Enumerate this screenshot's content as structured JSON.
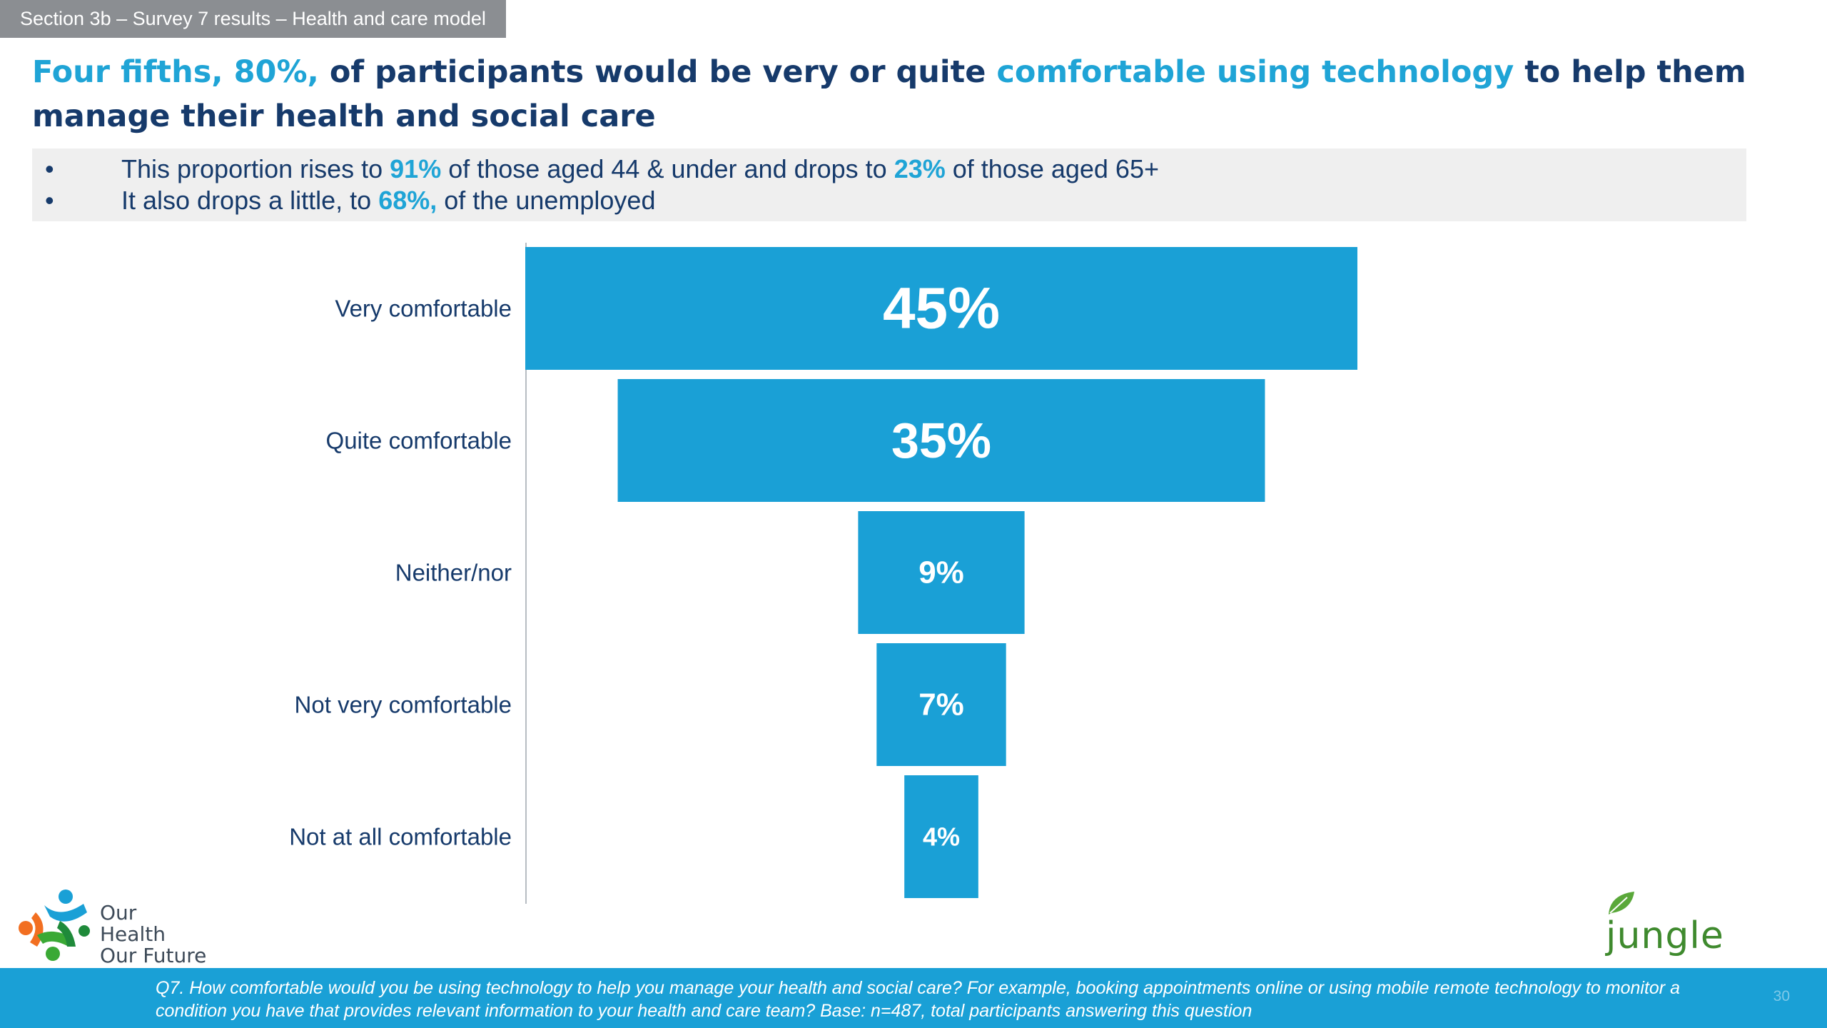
{
  "section_tab": "Section 3b – Survey 7 results – Health and care model",
  "headline": {
    "part1": "Four fifths, 80%,",
    "part2": " of participants would be very or quite ",
    "part3": "comfortable using technology",
    "part4": " to help them manage their health and social care"
  },
  "bullets": [
    {
      "a": "This proportion rises to ",
      "b": "91%",
      "c": " of those aged 44 & under and drops to ",
      "d": "23%",
      "e": " of those aged 65+"
    },
    {
      "a": "It also drops a little, to ",
      "b": "68%,",
      "c": " of the unemployed",
      "d": "",
      "e": ""
    }
  ],
  "bullet_char": "•",
  "colors": {
    "bar": "#1aa0d6",
    "dark_blue": "#163a6b",
    "accent": "#1fa4d6"
  },
  "chart_data": {
    "type": "bar",
    "orientation": "horizontal-centered-funnel",
    "categories": [
      "Very comfortable",
      "Quite comfortable",
      "Neither/nor",
      "Not very comfortable",
      "Not at all comfortable"
    ],
    "values": [
      45,
      35,
      9,
      7,
      4
    ],
    "data_labels": [
      "45%",
      "35%",
      "9%",
      "7%",
      "4%"
    ],
    "unit": "%",
    "grid": false,
    "legend": "none"
  },
  "footer": {
    "note": "Q7. How comfortable would you be using technology to help you manage your health and social care? For example, booking appointments online or using mobile remote technology to monitor a condition you have that provides relevant information to your health and care team?   Base: n=487, total participants answering this question",
    "page_number": "30"
  },
  "logos": {
    "left_line1": "Our Health",
    "left_line2": "Our Future",
    "right": "jungle green",
    "left_icon": "people-pinwheel-icon",
    "right_icon": "leaf-icon"
  }
}
